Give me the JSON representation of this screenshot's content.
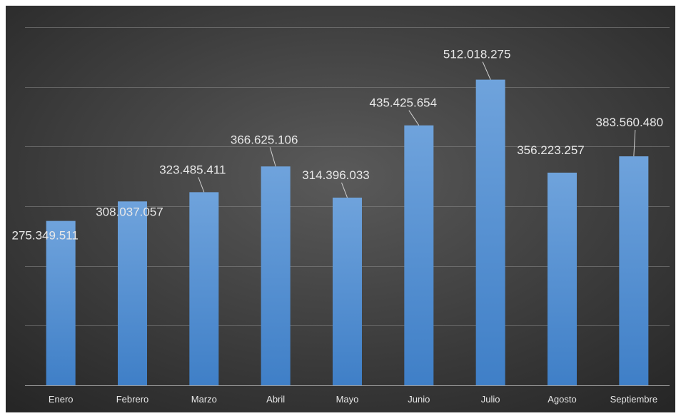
{
  "chart_data": {
    "type": "bar",
    "title": "",
    "xlabel": "",
    "ylabel": "",
    "categories": [
      "Enero",
      "Febrero",
      "Marzo",
      "Abril",
      "Mayo",
      "Junio",
      "Julio",
      "Agosto",
      "Septiembre"
    ],
    "values": [
      275349511,
      308037057,
      323485411,
      366625106,
      314396033,
      435425654,
      512018275,
      356223257,
      383560480
    ],
    "data_labels": [
      "275.349.511",
      "308.037.057",
      "323.485.411",
      "366.625.106",
      "314.396.033",
      "435.425.654",
      "512.018.275",
      "356.223.257",
      "383.560.480"
    ],
    "ylim": [
      0,
      600000000
    ],
    "grid": true,
    "legend": "none",
    "colors": {
      "background_center": "#5a5a5a",
      "background_edge": "#262626",
      "bar_top": "#6fa3dc",
      "bar_bottom": "#3f7fc7",
      "text": "#e6e6e6"
    }
  }
}
